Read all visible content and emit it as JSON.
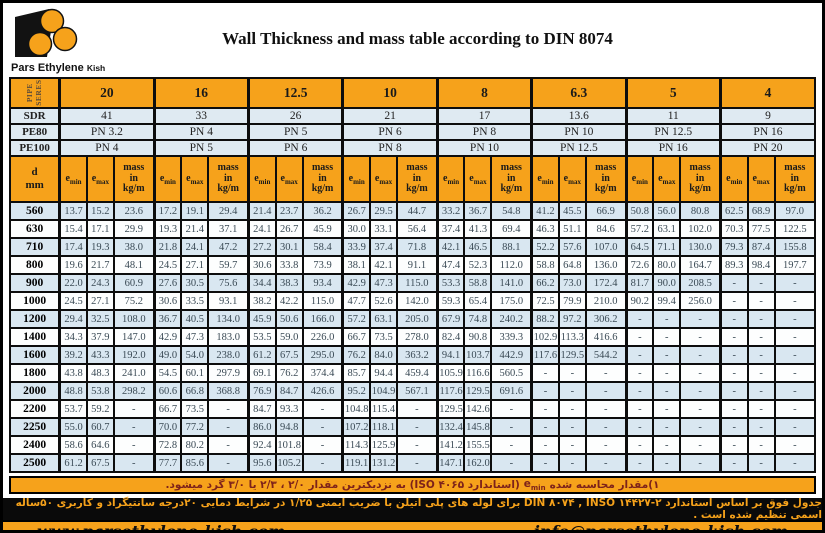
{
  "colors": {
    "accent_orange": "#F6A21B",
    "row_alt_blue": "#D9E7F1",
    "note_text_red": "#7D221A",
    "border_black": "#0D0D0D"
  },
  "brand": {
    "name": "Pars Ethylene",
    "name_suffix": "Kish"
  },
  "title": "Wall Thickness and mass table according to DIN 8074",
  "table": {
    "corner_label_lines": [
      "PIPE",
      "SERES"
    ],
    "row_labels": {
      "sdr": "SDR",
      "pe80": "PE80",
      "pe100": "PE100",
      "d": "d",
      "d_unit": "mm"
    },
    "sub": {
      "e": "e",
      "min": "min",
      "max": "max",
      "mass_lines": [
        "mass",
        "in",
        "kg/m"
      ]
    },
    "series": [
      {
        "label": "20",
        "sdr": "41",
        "pe80": "PN 3.2",
        "pe100": "PN 4"
      },
      {
        "label": "16",
        "sdr": "33",
        "pe80": "PN 4",
        "pe100": "PN 5"
      },
      {
        "label": "12.5",
        "sdr": "26",
        "pe80": "PN 5",
        "pe100": "PN 6"
      },
      {
        "label": "10",
        "sdr": "21",
        "pe80": "PN 6",
        "pe100": "PN 8"
      },
      {
        "label": "8",
        "sdr": "17",
        "pe80": "PN 8",
        "pe100": "PN 10"
      },
      {
        "label": "6.3",
        "sdr": "13.6",
        "pe80": "PN 10",
        "pe100": "PN 12.5"
      },
      {
        "label": "5",
        "sdr": "11",
        "pe80": "PN 12.5",
        "pe100": "PN 16"
      },
      {
        "label": "4",
        "sdr": "9",
        "pe80": "PN 16",
        "pe100": "PN 20"
      }
    ],
    "rows": [
      {
        "d": "560",
        "values": [
          "13.7",
          "15.2",
          "23.6",
          "17.2",
          "19.1",
          "29.4",
          "21.4",
          "23.7",
          "36.2",
          "26.7",
          "29.5",
          "44.7",
          "33.2",
          "36.7",
          "54.8",
          "41.2",
          "45.5",
          "66.9",
          "50.8",
          "56.0",
          "80.8",
          "62.5",
          "68.9",
          "97.0"
        ]
      },
      {
        "d": "630",
        "values": [
          "15.4",
          "17.1",
          "29.9",
          "19.3",
          "21.4",
          "37.1",
          "24.1",
          "26.7",
          "45.9",
          "30.0",
          "33.1",
          "56.4",
          "37.4",
          "41.3",
          "69.4",
          "46.3",
          "51.1",
          "84.6",
          "57.2",
          "63.1",
          "102.0",
          "70.3",
          "77.5",
          "122.5"
        ]
      },
      {
        "d": "710",
        "values": [
          "17.4",
          "19.3",
          "38.0",
          "21.8",
          "24.1",
          "47.2",
          "27.2",
          "30.1",
          "58.4",
          "33.9",
          "37.4",
          "71.8",
          "42.1",
          "46.5",
          "88.1",
          "52.2",
          "57.6",
          "107.0",
          "64.5",
          "71.1",
          "130.0",
          "79.3",
          "87.4",
          "155.8"
        ]
      },
      {
        "d": "800",
        "values": [
          "19.6",
          "21.7",
          "48.1",
          "24.5",
          "27.1",
          "59.7",
          "30.6",
          "33.8",
          "73.9",
          "38.1",
          "42.1",
          "91.1",
          "47.4",
          "52.3",
          "112.0",
          "58.8",
          "64.8",
          "136.0",
          "72.6",
          "80.0",
          "164.7",
          "89.3",
          "98.4",
          "197.7"
        ]
      },
      {
        "d": "900",
        "values": [
          "22.0",
          "24.3",
          "60.9",
          "27.6",
          "30.5",
          "75.6",
          "34.4",
          "38.3",
          "93.4",
          "42.9",
          "47.3",
          "115.0",
          "53.3",
          "58.8",
          "141.0",
          "66.2",
          "73.0",
          "172.4",
          "81.7",
          "90.0",
          "208.5",
          "-",
          "-",
          "-"
        ]
      },
      {
        "d": "1000",
        "values": [
          "24.5",
          "27.1",
          "75.2",
          "30.6",
          "33.5",
          "93.1",
          "38.2",
          "42.2",
          "115.0",
          "47.7",
          "52.6",
          "142.0",
          "59.3",
          "65.4",
          "175.0",
          "72.5",
          "79.9",
          "210.0",
          "90.2",
          "99.4",
          "256.0",
          "-",
          "-",
          "-"
        ]
      },
      {
        "d": "1200",
        "values": [
          "29.4",
          "32.5",
          "108.0",
          "36.7",
          "40.5",
          "134.0",
          "45.9",
          "50.6",
          "166.0",
          "57.2",
          "63.1",
          "205.0",
          "67.9",
          "74.8",
          "240.2",
          "88.2",
          "97.2",
          "306.2",
          "-",
          "-",
          "-",
          "-",
          "-",
          "-"
        ]
      },
      {
        "d": "1400",
        "values": [
          "34.3",
          "37.9",
          "147.0",
          "42.9",
          "47.3",
          "183.0",
          "53.5",
          "59.0",
          "226.0",
          "66.7",
          "73.5",
          "278.0",
          "82.4",
          "90.8",
          "339.3",
          "102.9",
          "113.3",
          "416.6",
          "-",
          "-",
          "-",
          "-",
          "-",
          "-"
        ]
      },
      {
        "d": "1600",
        "values": [
          "39.2",
          "43.3",
          "192.0",
          "49.0",
          "54.0",
          "238.0",
          "61.2",
          "67.5",
          "295.0",
          "76.2",
          "84.0",
          "363.2",
          "94.1",
          "103.7",
          "442.9",
          "117.6",
          "129.5",
          "544.2",
          "-",
          "-",
          "-",
          "-",
          "-",
          "-"
        ]
      },
      {
        "d": "1800",
        "values": [
          "43.8",
          "48.3",
          "241.0",
          "54.5",
          "60.1",
          "297.9",
          "69.1",
          "76.2",
          "374.4",
          "85.7",
          "94.4",
          "459.4",
          "105.9",
          "116.6",
          "560.5",
          "-",
          "-",
          "-",
          "-",
          "-",
          "-",
          "-",
          "-",
          "-"
        ]
      },
      {
        "d": "2000",
        "values": [
          "48.8",
          "53.8",
          "298.2",
          "60.6",
          "66.8",
          "368.8",
          "76.9",
          "84.7",
          "426.6",
          "95.2",
          "104.9",
          "567.1",
          "117.6",
          "129.5",
          "691.6",
          "-",
          "-",
          "-",
          "-",
          "-",
          "-",
          "-",
          "-",
          "-"
        ]
      },
      {
        "d": "2200",
        "values": [
          "53.7",
          "59.2",
          "-",
          "66.7",
          "73.5",
          "-",
          "84.7",
          "93.3",
          "-",
          "104.8",
          "115.4",
          "-",
          "129.5",
          "142.6",
          "-",
          "-",
          "-",
          "-",
          "-",
          "-",
          "-",
          "-",
          "-",
          "-"
        ]
      },
      {
        "d": "2250",
        "values": [
          "55.0",
          "60.7",
          "-",
          "70.0",
          "77.2",
          "-",
          "86.0",
          "94.8",
          "-",
          "107.2",
          "118.1",
          "-",
          "132.4",
          "145.8",
          "-",
          "-",
          "-",
          "-",
          "-",
          "-",
          "-",
          "-",
          "-",
          "-"
        ]
      },
      {
        "d": "2400",
        "values": [
          "58.6",
          "64.6",
          "-",
          "72.8",
          "80.2",
          "-",
          "92.4",
          "101.8",
          "-",
          "114.3",
          "125.9",
          "-",
          "141.2",
          "155.5",
          "-",
          "-",
          "-",
          "-",
          "-",
          "-",
          "-",
          "-",
          "-",
          "-"
        ]
      },
      {
        "d": "2500",
        "values": [
          "61.2",
          "67.5",
          "-",
          "77.7",
          "85.6",
          "-",
          "95.6",
          "105.2",
          "-",
          "119.1",
          "131.2",
          "-",
          "147.1",
          "162.0",
          "-",
          "-",
          "-",
          "-",
          "-",
          "-",
          "-",
          "-",
          "-",
          "-"
        ]
      }
    ]
  },
  "notes": {
    "note1_lead": "۱)مقدار محاسبه شده",
    "note1_rest": "(استاندارد ISO ۴۰۶۵) به نزدیکترین مقدار ۲/۰ ، ۲/۳ یا ۳/۰ گرد میشود.",
    "note2": "جدول فوق بر اساس استاندارد DIN ۸۰۷۴ , INSO ۱۴۴۲۷-۲ برای لوله های پلی اتیلن با ضریب ایمنی ۱/۲۵ در شرایط دمایی ۲۰درجه سانتیگراد و کاربری ۵۰ساله اسمی تنظیم شده است ."
  },
  "footer": {
    "website": "www.parsethylene-kish.com",
    "email": "info@parsethylene-kish.com"
  }
}
